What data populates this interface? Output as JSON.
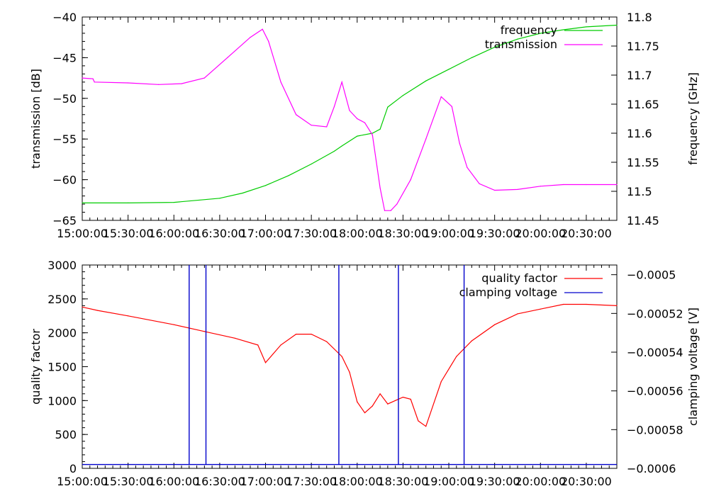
{
  "x_tick_labels": [
    "15:00:00",
    "15:30:00",
    "16:00:00",
    "16:30:00",
    "17:00:00",
    "17:30:00",
    "18:00:00",
    "18:30:00",
    "19:00:00",
    "19:30:00",
    "20:00:00",
    "20:30:00"
  ],
  "chart_data": [
    {
      "type": "line",
      "xlabel": "",
      "ylabel": "transmission [dB]",
      "y2label": "frequency [GHz]",
      "xlim": [
        "15:00:00",
        "20:50:00"
      ],
      "ylim": [
        -65,
        -40
      ],
      "y2lim": [
        11.45,
        11.8
      ],
      "y_ticks": [
        "-40",
        "-45",
        "-50",
        "-55",
        "-60",
        "-65"
      ],
      "y2_ticks": [
        "11.8",
        "11.75",
        "11.7",
        "11.65",
        "11.6",
        "11.55",
        "11.5",
        "11.45"
      ],
      "legend": "top-right",
      "grid": false,
      "series": [
        {
          "name": "frequency",
          "axis": "right",
          "color": "#00cc00",
          "x": [
            "15:00:00",
            "15:30:00",
            "16:00:00",
            "16:30:00",
            "16:45:00",
            "17:00:00",
            "17:15:00",
            "17:30:00",
            "17:45:00",
            "17:50:00",
            "18:00:00",
            "18:10:00",
            "18:15:00",
            "18:20:00",
            "18:30:00",
            "18:45:00",
            "19:00:00",
            "19:15:00",
            "19:30:00",
            "19:45:00",
            "20:00:00",
            "20:15:00",
            "20:30:00",
            "20:50:00"
          ],
          "values": [
            11.48,
            11.48,
            11.481,
            11.488,
            11.497,
            11.51,
            11.527,
            11.547,
            11.569,
            11.578,
            11.595,
            11.6,
            11.607,
            11.645,
            11.665,
            11.69,
            11.71,
            11.73,
            11.748,
            11.762,
            11.772,
            11.778,
            11.783,
            11.786
          ]
        },
        {
          "name": "transmission",
          "axis": "left",
          "color": "#ff00ff",
          "x": [
            "15:00:00",
            "15:07:00",
            "15:08:00",
            "15:30:00",
            "15:50:00",
            "16:05:00",
            "16:20:00",
            "16:35:00",
            "16:50:00",
            "16:58:00",
            "17:02:00",
            "17:10:00",
            "17:20:00",
            "17:30:00",
            "17:40:00",
            "17:45:00",
            "17:50:00",
            "17:55:00",
            "18:00:00",
            "18:05:00",
            "18:10:00",
            "18:15:00",
            "18:18:00",
            "18:22:00",
            "18:26:00",
            "18:35:00",
            "18:45:00",
            "18:55:00",
            "19:02:00",
            "19:07:00",
            "19:12:00",
            "19:20:00",
            "19:30:00",
            "19:45:00",
            "20:00:00",
            "20:15:00",
            "20:30:00",
            "20:50:00"
          ],
          "values": [
            -47.5,
            -47.6,
            -48.0,
            -48.1,
            -48.3,
            -48.2,
            -47.5,
            -45.0,
            -42.5,
            -41.5,
            -43.0,
            -48.0,
            -52.0,
            -53.3,
            -53.5,
            -51.0,
            -48.0,
            -51.5,
            -52.5,
            -53.0,
            -54.5,
            -61.0,
            -63.8,
            -63.8,
            -63.0,
            -60.0,
            -55.0,
            -49.8,
            -51.0,
            -55.5,
            -58.5,
            -60.5,
            -61.3,
            -61.2,
            -60.8,
            -60.6,
            -60.6,
            -60.6
          ]
        }
      ]
    },
    {
      "type": "line",
      "xlabel": "",
      "ylabel": "quality factor",
      "y2label": "clamping voltage [V]",
      "xlim": [
        "15:00:00",
        "20:50:00"
      ],
      "ylim": [
        0,
        3000
      ],
      "y2lim": [
        -0.0006,
        -0.000495
      ],
      "y_ticks": [
        "3000",
        "2500",
        "2000",
        "1500",
        "1000",
        "500",
        "0"
      ],
      "y2_ticks": [
        "-0.0005",
        "-0.00052",
        "-0.00054",
        "-0.00056",
        "-0.00058",
        "-0.0006"
      ],
      "legend": "top-right",
      "grid": false,
      "series": [
        {
          "name": "quality factor",
          "axis": "left",
          "color": "#ff0000",
          "x": [
            "15:00:00",
            "15:10:00",
            "15:30:00",
            "16:00:00",
            "16:20:00",
            "16:40:00",
            "16:55:00",
            "17:00:00",
            "17:10:00",
            "17:20:00",
            "17:30:00",
            "17:40:00",
            "17:50:00",
            "17:55:00",
            "18:00:00",
            "18:05:00",
            "18:10:00",
            "18:15:00",
            "18:20:00",
            "18:25:00",
            "18:30:00",
            "18:35:00",
            "18:40:00",
            "18:45:00",
            "18:55:00",
            "19:05:00",
            "19:15:00",
            "19:30:00",
            "19:45:00",
            "20:00:00",
            "20:15:00",
            "20:30:00",
            "20:50:00"
          ],
          "values": [
            2380,
            2330,
            2250,
            2120,
            2020,
            1920,
            1820,
            1560,
            1820,
            1980,
            1980,
            1870,
            1650,
            1420,
            980,
            820,
            920,
            1100,
            950,
            1000,
            1050,
            1020,
            700,
            620,
            1280,
            1650,
            1880,
            2120,
            2280,
            2350,
            2420,
            2420,
            2400
          ]
        },
        {
          "name": "clamping voltage",
          "axis": "right",
          "color": "#0000cc",
          "spikes_at": [
            "16:10:00",
            "16:21:00",
            "17:48:00",
            "18:27:00",
            "19:10:00"
          ],
          "baseline": -0.000598,
          "spike_value": -0.000495
        }
      ]
    }
  ]
}
